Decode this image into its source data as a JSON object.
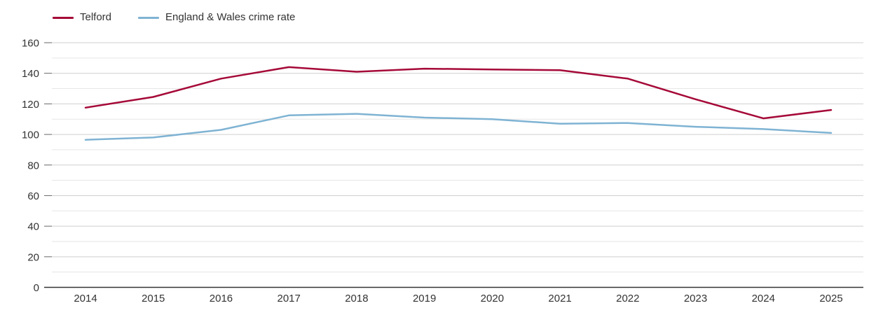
{
  "chart_data": {
    "type": "line",
    "title": "",
    "categories": [
      "2014",
      "2015",
      "2016",
      "2017",
      "2018",
      "2019",
      "2020",
      "2021",
      "2022",
      "2023",
      "2024",
      "2025"
    ],
    "series": [
      {
        "name": "Telford",
        "color": "#a50938",
        "values": [
          117.5,
          124.5,
          136.5,
          144,
          141,
          143,
          142.5,
          142,
          136.5,
          123,
          110.5,
          116
        ]
      },
      {
        "name": "England & Wales crime rate",
        "color": "#7fb3d3",
        "values": [
          96.5,
          98,
          103,
          112.5,
          113.5,
          111,
          110,
          107,
          107.5,
          105,
          103.5,
          101
        ]
      }
    ],
    "xlabel": "",
    "ylabel": "",
    "ylim": [
      0,
      160
    ],
    "y_label_step": 20,
    "y_grid_step": 10,
    "y_tick_labels": [
      "0",
      "20",
      "40",
      "60",
      "80",
      "100",
      "120",
      "140",
      "160"
    ],
    "grid": true,
    "legend_position": "top-left"
  },
  "legend": {
    "items": [
      {
        "label": "Telford"
      },
      {
        "label": "England & Wales crime rate"
      }
    ]
  },
  "colors": {
    "telford_line": "#a50938",
    "england_wales_line": "#7fb3d3",
    "major_gridline": "#cfcfcf",
    "minor_gridline": "#e6e6e6",
    "axis_line": "#333333",
    "tick_mark": "#666666",
    "label_text": "#333333"
  }
}
